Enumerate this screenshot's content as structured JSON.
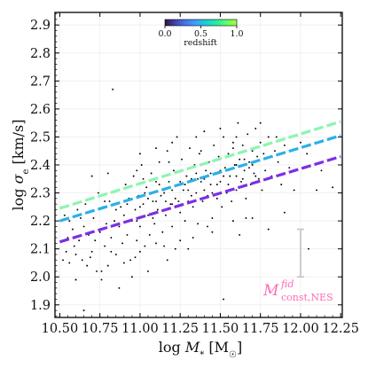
{
  "chart_data": {
    "type": "scatter",
    "xlabel": "log M_* [M_☉]",
    "ylabel": "log σ_e [km/s]",
    "xlim": [
      10.47,
      12.26
    ],
    "ylim": [
      1.855,
      2.945
    ],
    "x_ticks": [
      "10.50",
      "10.75",
      "11.00",
      "11.25",
      "11.50",
      "11.75",
      "12.00",
      "12.25"
    ],
    "y_ticks": [
      "1.9",
      "2.0",
      "2.1",
      "2.2",
      "2.3",
      "2.4",
      "2.5",
      "2.6",
      "2.7",
      "2.8",
      "2.9"
    ],
    "x_tick_values": [
      10.5,
      10.75,
      11.0,
      11.25,
      11.5,
      11.75,
      12.0,
      12.25
    ],
    "y_tick_values": [
      1.9,
      2.0,
      2.1,
      2.2,
      2.3,
      2.4,
      2.5,
      2.6,
      2.7,
      2.8,
      2.9
    ],
    "grid": true,
    "colorbar": {
      "label": "redshift",
      "ticks": [
        "0.0",
        "0.5",
        "1.0"
      ],
      "colormap": [
        "#30123b",
        "#4145ab",
        "#4675ed",
        "#39a2fc",
        "#1bcfd4",
        "#24eca6",
        "#61fc6c",
        "#a4fc3b"
      ]
    },
    "series": [
      {
        "x": [
          10.5,
          12.25
        ],
        "y": [
          2.125,
          2.43
        ],
        "color": "#7b2fe6",
        "style": "dashed"
      },
      {
        "x": [
          10.5,
          12.25
        ],
        "y": [
          2.2,
          2.505
        ],
        "color": "#2ab0e8",
        "style": "dashed"
      },
      {
        "x": [
          10.5,
          12.25
        ],
        "y": [
          2.245,
          2.555
        ],
        "color": "#8cf5b0",
        "style": "dashed"
      }
    ],
    "scatter": {
      "color": "#000000",
      "points": [
        [
          10.52,
          2.06
        ],
        [
          10.53,
          2.22
        ],
        [
          10.54,
          2.09
        ],
        [
          10.56,
          2.2
        ],
        [
          10.58,
          2.17
        ],
        [
          10.59,
          2.11
        ],
        [
          10.6,
          1.99
        ],
        [
          10.61,
          2.24
        ],
        [
          10.62,
          2.13
        ],
        [
          10.64,
          2.06
        ],
        [
          10.65,
          2.18
        ],
        [
          10.66,
          2.26
        ],
        [
          10.67,
          2.04
        ],
        [
          10.68,
          2.15
        ],
        [
          10.7,
          2.09
        ],
        [
          10.71,
          2.21
        ],
        [
          10.72,
          2.13
        ],
        [
          10.73,
          2.02
        ],
        [
          10.74,
          2.3
        ],
        [
          10.75,
          2.16
        ],
        [
          10.76,
          1.99
        ],
        [
          10.77,
          2.25
        ],
        [
          10.78,
          2.11
        ],
        [
          10.79,
          2.19
        ],
        [
          10.8,
          2.04
        ],
        [
          10.81,
          2.27
        ],
        [
          10.82,
          2.14
        ],
        [
          10.83,
          2.67
        ],
        [
          10.84,
          2.2
        ],
        [
          10.85,
          2.08
        ],
        [
          10.86,
          2.31
        ],
        [
          10.87,
          2.18
        ],
        [
          10.88,
          2.25
        ],
        [
          10.89,
          2.12
        ],
        [
          10.9,
          2.22
        ],
        [
          10.91,
          2.33
        ],
        [
          10.92,
          2.15
        ],
        [
          10.93,
          2.28
        ],
        [
          10.94,
          2.06
        ],
        [
          10.95,
          2.2
        ],
        [
          10.96,
          2.36
        ],
        [
          10.97,
          2.24
        ],
        [
          10.98,
          2.13
        ],
        [
          10.99,
          2.29
        ],
        [
          11.0,
          2.18
        ],
        [
          11.01,
          2.4
        ],
        [
          11.02,
          2.26
        ],
        [
          11.03,
          2.11
        ],
        [
          11.04,
          2.32
        ],
        [
          11.05,
          2.22
        ],
        [
          11.06,
          2.15
        ],
        [
          11.07,
          2.37
        ],
        [
          11.08,
          2.27
        ],
        [
          11.09,
          2.19
        ],
        [
          11.1,
          2.34
        ],
        [
          11.11,
          2.24
        ],
        [
          11.12,
          2.41
        ],
        [
          11.13,
          2.29
        ],
        [
          11.14,
          2.16
        ],
        [
          11.15,
          2.31
        ],
        [
          11.16,
          2.22
        ],
        [
          11.17,
          2.45
        ],
        [
          11.18,
          2.34
        ],
        [
          11.19,
          2.26
        ],
        [
          11.2,
          2.18
        ],
        [
          11.21,
          2.38
        ],
        [
          11.22,
          2.28
        ],
        [
          11.23,
          2.5
        ],
        [
          11.24,
          2.33
        ],
        [
          11.25,
          2.23
        ],
        [
          11.26,
          2.42
        ],
        [
          11.27,
          2.31
        ],
        [
          11.28,
          2.2
        ],
        [
          11.29,
          2.36
        ],
        [
          11.3,
          2.27
        ],
        [
          11.31,
          2.46
        ],
        [
          11.32,
          2.35
        ],
        [
          11.33,
          2.25
        ],
        [
          11.34,
          2.4
        ],
        [
          11.35,
          2.3
        ],
        [
          11.36,
          2.19
        ],
        [
          11.37,
          2.44
        ],
        [
          11.38,
          2.34
        ],
        [
          11.39,
          2.27
        ],
        [
          11.4,
          2.52
        ],
        [
          11.41,
          2.38
        ],
        [
          11.42,
          2.29
        ],
        [
          11.43,
          2.41
        ],
        [
          11.44,
          2.33
        ],
        [
          11.45,
          2.21
        ],
        [
          11.46,
          2.47
        ],
        [
          11.47,
          2.37
        ],
        [
          11.48,
          2.28
        ],
        [
          11.49,
          2.43
        ],
        [
          11.5,
          2.34
        ],
        [
          11.51,
          2.25
        ],
        [
          11.52,
          2.5
        ],
        [
          11.53,
          2.39
        ],
        [
          11.54,
          2.3
        ],
        [
          11.55,
          2.44
        ],
        [
          11.56,
          2.36
        ],
        [
          11.57,
          2.27
        ],
        [
          11.58,
          2.48
        ],
        [
          11.59,
          2.4
        ],
        [
          11.6,
          2.31
        ],
        [
          11.61,
          2.55
        ],
        [
          11.62,
          2.42
        ],
        [
          11.63,
          2.34
        ],
        [
          11.64,
          2.47
        ],
        [
          11.65,
          2.38
        ],
        [
          11.66,
          2.28
        ],
        [
          11.67,
          2.51
        ],
        [
          11.68,
          2.41
        ],
        [
          11.69,
          2.33
        ],
        [
          11.7,
          2.45
        ],
        [
          11.71,
          2.37
        ],
        [
          11.72,
          2.53
        ],
        [
          11.73,
          2.43
        ],
        [
          11.74,
          2.35
        ],
        [
          11.75,
          2.48
        ],
        [
          11.76,
          2.31
        ],
        [
          11.77,
          2.44
        ],
        [
          11.78,
          2.38
        ],
        [
          11.8,
          2.5
        ],
        [
          11.82,
          2.36
        ],
        [
          11.84,
          2.45
        ],
        [
          11.86,
          2.41
        ],
        [
          11.88,
          2.33
        ],
        [
          11.9,
          2.47
        ],
        [
          11.93,
          2.39
        ],
        [
          11.96,
          2.31
        ],
        [
          12.0,
          2.48
        ],
        [
          12.04,
          2.44
        ],
        [
          12.1,
          2.31
        ],
        [
          12.13,
          2.38
        ],
        [
          12.2,
          2.32
        ],
        [
          10.55,
          2.14
        ],
        [
          10.63,
          2.21
        ],
        [
          10.69,
          2.07
        ],
        [
          10.78,
          2.27
        ],
        [
          10.85,
          2.24
        ],
        [
          10.92,
          2.26
        ],
        [
          10.98,
          2.2
        ],
        [
          11.03,
          2.3
        ],
        [
          11.08,
          2.21
        ],
        [
          11.12,
          2.33
        ],
        [
          11.16,
          2.27
        ],
        [
          11.2,
          2.31
        ],
        [
          11.24,
          2.27
        ],
        [
          11.28,
          2.33
        ],
        [
          11.32,
          2.29
        ],
        [
          11.36,
          2.35
        ],
        [
          11.4,
          2.31
        ],
        [
          11.44,
          2.37
        ],
        [
          11.48,
          2.33
        ],
        [
          11.52,
          2.36
        ],
        [
          11.56,
          2.31
        ],
        [
          11.6,
          2.4
        ],
        [
          11.64,
          2.35
        ],
        [
          11.68,
          2.39
        ],
        [
          11.72,
          2.36
        ],
        [
          11.0,
          2.25
        ],
        [
          11.05,
          2.28
        ],
        [
          11.1,
          2.27
        ],
        [
          11.15,
          2.3
        ],
        [
          11.2,
          2.26
        ],
        [
          11.25,
          2.34
        ],
        [
          11.3,
          2.31
        ],
        [
          11.35,
          2.37
        ],
        [
          11.4,
          2.35
        ],
        [
          11.45,
          2.3
        ],
        [
          11.5,
          2.38
        ],
        [
          11.55,
          2.33
        ],
        [
          11.6,
          2.36
        ],
        [
          11.65,
          2.42
        ],
        [
          11.7,
          2.4
        ],
        [
          10.6,
          1.99
        ],
        [
          10.65,
          1.88
        ],
        [
          10.87,
          1.96
        ],
        [
          10.95,
          2.0
        ],
        [
          11.05,
          2.02
        ],
        [
          11.17,
          2.06
        ],
        [
          11.3,
          2.1
        ],
        [
          11.52,
          1.92
        ],
        [
          11.62,
          2.15
        ],
        [
          11.8,
          2.17
        ],
        [
          12.05,
          2.1
        ],
        [
          10.9,
          2.05
        ],
        [
          11.0,
          2.09
        ],
        [
          11.15,
          2.11
        ],
        [
          11.25,
          2.13
        ],
        [
          11.45,
          2.16
        ],
        [
          11.7,
          2.21
        ],
        [
          10.56,
          2.05
        ],
        [
          10.6,
          2.08
        ],
        [
          10.76,
          2.02
        ],
        [
          10.82,
          2.09
        ],
        [
          10.97,
          2.07
        ],
        [
          11.1,
          2.12
        ],
        [
          11.22,
          2.1
        ],
        [
          11.33,
          2.14
        ],
        [
          11.42,
          2.18
        ],
        [
          11.58,
          2.2
        ],
        [
          11.66,
          2.21
        ],
        [
          11.9,
          2.23
        ],
        [
          10.7,
          2.36
        ],
        [
          10.8,
          2.37
        ],
        [
          11.0,
          2.44
        ],
        [
          11.1,
          2.46
        ],
        [
          11.2,
          2.48
        ],
        [
          11.35,
          2.5
        ],
        [
          11.5,
          2.53
        ],
        [
          11.6,
          2.5
        ],
        [
          11.75,
          2.55
        ],
        [
          11.85,
          2.5
        ],
        [
          10.98,
          2.38
        ],
        [
          11.02,
          2.35
        ],
        [
          11.18,
          2.41
        ],
        [
          11.38,
          2.45
        ],
        [
          11.58,
          2.46
        ],
        [
          11.78,
          2.47
        ]
      ]
    },
    "annotations": {
      "model_label": "M",
      "model_sup": "fid",
      "model_sub": "const,NES",
      "errorbar": {
        "x": 12.0,
        "y": [
          2.13,
          2.17
        ],
        "color": "#c8c8c8"
      }
    }
  }
}
